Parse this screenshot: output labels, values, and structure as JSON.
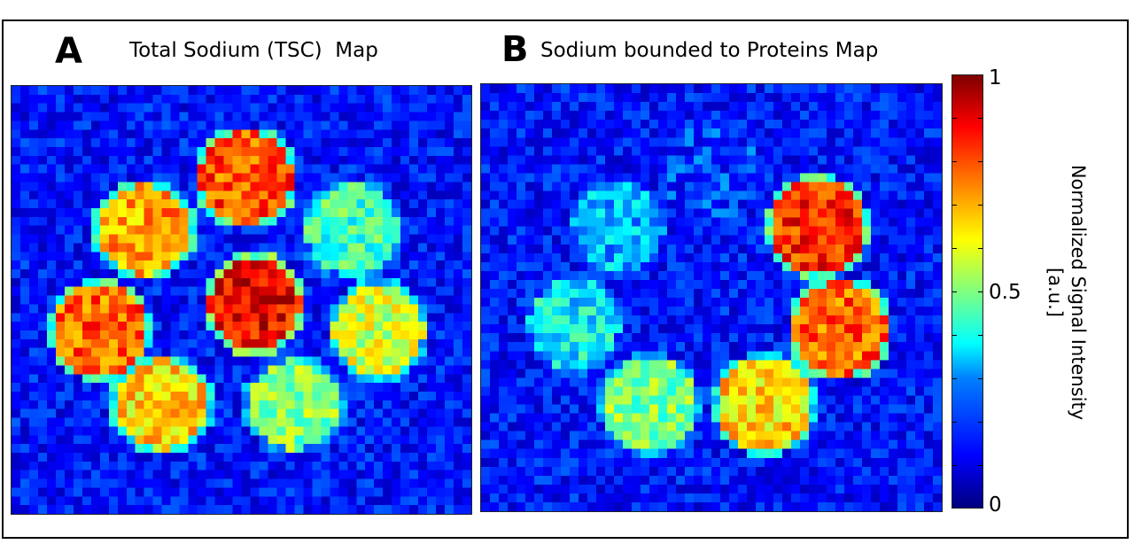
{
  "panels": [
    {
      "letter": "A",
      "title": "Total Sodium (TSC)  Map",
      "background_level": 0.14,
      "phantoms": [
        {
          "label": "top",
          "intensity": 0.8
        },
        {
          "label": "upper-left",
          "intensity": 0.72
        },
        {
          "label": "upper-right",
          "intensity": 0.44
        },
        {
          "label": "center",
          "intensity": 0.88
        },
        {
          "label": "left",
          "intensity": 0.78
        },
        {
          "label": "right",
          "intensity": 0.58
        },
        {
          "label": "lower-left",
          "intensity": 0.66
        },
        {
          "label": "lower-center",
          "intensity": 0.5
        }
      ]
    },
    {
      "letter": "B",
      "title": "Sodium bounded to Proteins Map",
      "background_level": 0.14,
      "phantoms": [
        {
          "label": "top",
          "intensity": 0.18
        },
        {
          "label": "upper-left",
          "intensity": 0.3
        },
        {
          "label": "upper-right",
          "intensity": 0.84
        },
        {
          "label": "left",
          "intensity": 0.36
        },
        {
          "label": "right",
          "intensity": 0.78
        },
        {
          "label": "lower-left",
          "intensity": 0.5
        },
        {
          "label": "lower-right",
          "intensity": 0.66
        }
      ]
    }
  ],
  "colorbar": {
    "title_line1": "Normalized Signal Intensity",
    "title_line2": "[a.u.]",
    "labels": [
      {
        "text": "1",
        "value": 1.0
      },
      {
        "text": "0.5",
        "value": 0.5
      },
      {
        "text": "0",
        "value": 0.0
      }
    ],
    "colormap": "jet",
    "range": [
      0,
      1
    ]
  }
}
